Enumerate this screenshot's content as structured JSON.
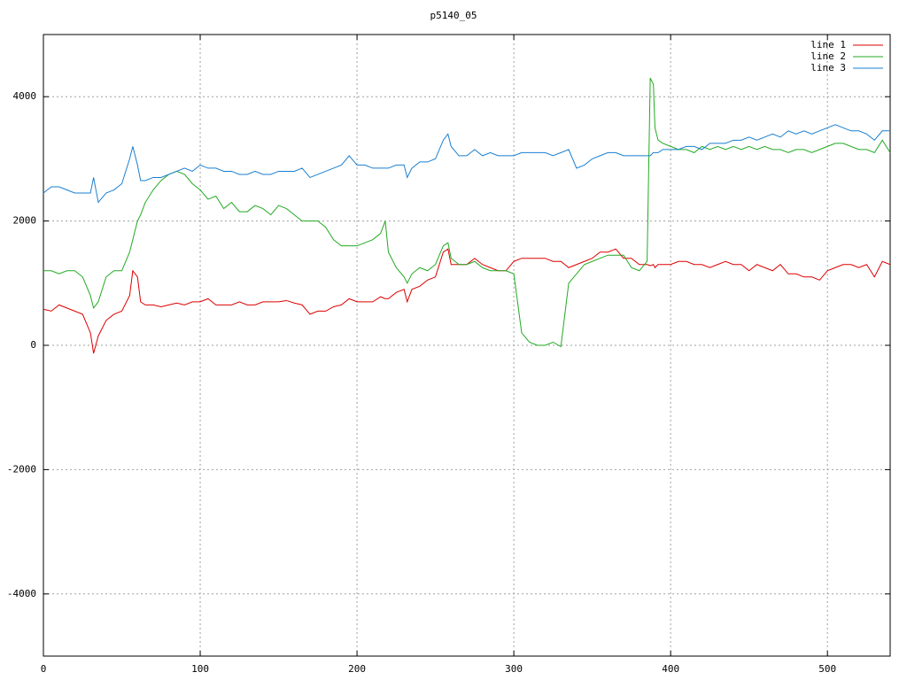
{
  "chart_data": {
    "type": "line",
    "title": "p5140_05",
    "x": [
      0,
      5,
      10,
      15,
      20,
      25,
      30,
      32,
      35,
      40,
      45,
      50,
      55,
      57,
      60,
      62,
      65,
      70,
      75,
      80,
      85,
      90,
      95,
      100,
      105,
      110,
      115,
      120,
      125,
      130,
      135,
      140,
      145,
      150,
      155,
      160,
      165,
      170,
      175,
      180,
      185,
      190,
      195,
      200,
      205,
      210,
      215,
      218,
      220,
      225,
      230,
      232,
      235,
      240,
      245,
      250,
      255,
      258,
      260,
      265,
      270,
      275,
      280,
      285,
      290,
      295,
      300,
      305,
      310,
      315,
      320,
      325,
      330,
      335,
      340,
      345,
      350,
      355,
      360,
      365,
      370,
      375,
      380,
      385,
      387,
      389,
      390,
      392,
      395,
      400,
      405,
      410,
      415,
      420,
      425,
      430,
      435,
      440,
      445,
      450,
      455,
      460,
      465,
      470,
      475,
      480,
      485,
      490,
      495,
      500,
      505,
      510,
      515,
      520,
      525,
      530,
      535,
      540
    ],
    "series": [
      {
        "name": "line 1",
        "color": "#dd0000",
        "values": [
          580,
          550,
          650,
          600,
          550,
          500,
          200,
          -130,
          150,
          400,
          500,
          550,
          800,
          1200,
          1100,
          700,
          650,
          650,
          620,
          650,
          680,
          650,
          700,
          700,
          750,
          650,
          650,
          650,
          700,
          650,
          650,
          700,
          700,
          700,
          720,
          680,
          650,
          500,
          550,
          550,
          620,
          650,
          750,
          700,
          700,
          700,
          780,
          750,
          750,
          850,
          900,
          700,
          900,
          950,
          1050,
          1100,
          1500,
          1550,
          1300,
          1300,
          1300,
          1400,
          1300,
          1250,
          1200,
          1200,
          1350,
          1400,
          1400,
          1400,
          1400,
          1350,
          1350,
          1250,
          1300,
          1350,
          1400,
          1500,
          1500,
          1550,
          1400,
          1400,
          1300,
          1300,
          1280,
          1300,
          1250,
          1300,
          1300,
          1300,
          1350,
          1350,
          1300,
          1300,
          1250,
          1300,
          1350,
          1300,
          1300,
          1200,
          1300,
          1250,
          1200,
          1300,
          1150,
          1150,
          1100,
          1100,
          1050,
          1200,
          1250,
          1300,
          1300,
          1250,
          1300,
          1100,
          1350,
          1300
        ]
      },
      {
        "name": "line 2",
        "color": "#22aa22",
        "values": [
          1200,
          1200,
          1150,
          1200,
          1200,
          1100,
          800,
          600,
          700,
          1100,
          1200,
          1200,
          1500,
          1700,
          2000,
          2100,
          2300,
          2500,
          2650,
          2750,
          2800,
          2750,
          2600,
          2500,
          2350,
          2400,
          2200,
          2300,
          2150,
          2150,
          2250,
          2200,
          2100,
          2250,
          2200,
          2100,
          2000,
          2000,
          2000,
          1900,
          1700,
          1600,
          1600,
          1600,
          1650,
          1700,
          1800,
          2000,
          1500,
          1250,
          1100,
          1000,
          1150,
          1250,
          1200,
          1300,
          1600,
          1650,
          1400,
          1300,
          1300,
          1350,
          1250,
          1200,
          1200,
          1200,
          1150,
          200,
          50,
          0,
          0,
          50,
          -20,
          1000,
          1150,
          1300,
          1350,
          1400,
          1450,
          1450,
          1450,
          1250,
          1200,
          1350,
          4300,
          4200,
          3500,
          3300,
          3250,
          3200,
          3150,
          3150,
          3100,
          3200,
          3150,
          3200,
          3150,
          3200,
          3150,
          3200,
          3150,
          3200,
          3150,
          3150,
          3100,
          3150,
          3150,
          3100,
          3150,
          3200,
          3250,
          3250,
          3200,
          3150,
          3150,
          3100,
          3300,
          3100
        ]
      },
      {
        "name": "line 3",
        "color": "#1a7fd0",
        "values": [
          2450,
          2550,
          2550,
          2500,
          2450,
          2450,
          2450,
          2700,
          2300,
          2450,
          2500,
          2600,
          3000,
          3200,
          2900,
          2650,
          2650,
          2700,
          2700,
          2750,
          2800,
          2850,
          2800,
          2900,
          2850,
          2850,
          2800,
          2800,
          2750,
          2750,
          2800,
          2750,
          2750,
          2800,
          2800,
          2800,
          2850,
          2700,
          2750,
          2800,
          2850,
          2900,
          3050,
          2900,
          2900,
          2850,
          2850,
          2850,
          2850,
          2900,
          2900,
          2700,
          2850,
          2950,
          2950,
          3000,
          3300,
          3400,
          3200,
          3050,
          3050,
          3150,
          3050,
          3100,
          3050,
          3050,
          3050,
          3100,
          3100,
          3100,
          3100,
          3050,
          3100,
          3150,
          2850,
          2900,
          3000,
          3050,
          3100,
          3100,
          3050,
          3050,
          3050,
          3050,
          3050,
          3100,
          3100,
          3100,
          3150,
          3150,
          3150,
          3200,
          3200,
          3150,
          3250,
          3250,
          3250,
          3300,
          3300,
          3350,
          3300,
          3350,
          3400,
          3350,
          3450,
          3400,
          3450,
          3400,
          3450,
          3500,
          3550,
          3500,
          3450,
          3450,
          3400,
          3300,
          3450,
          3450
        ]
      }
    ],
    "xlim": [
      0,
      540
    ],
    "xticks": [
      0,
      100,
      200,
      300,
      400,
      500
    ],
    "ylim": [
      -5000,
      5000
    ],
    "yticks": [
      -4000,
      -2000,
      0,
      2000,
      4000
    ],
    "grid": true,
    "legend": "top-right"
  }
}
